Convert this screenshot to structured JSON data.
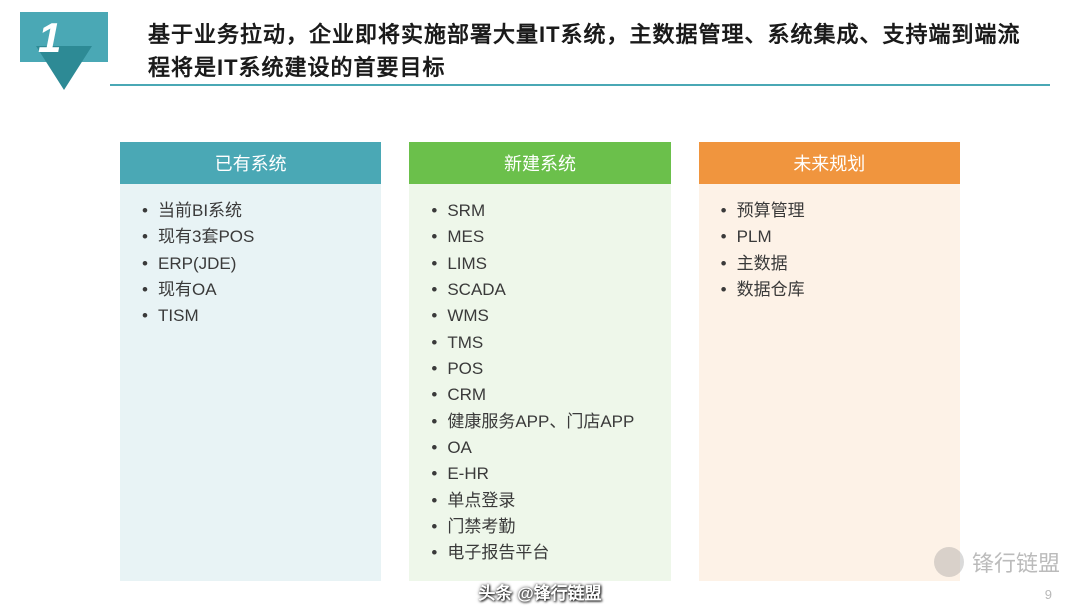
{
  "slide": {
    "number": "1",
    "title": "基于业务拉动，企业即将实施部署大量IT系统，主数据管理、系统集成、支持端到端流程将是IT系统建设的首要目标",
    "title_color": "#1a1a1a",
    "number_bg_color": "#4aa8b5",
    "triangle_color": "#2d8a95",
    "underline_color": "#4aa8b5"
  },
  "columns": [
    {
      "title": "已有系统",
      "header_bg": "#4aa8b5",
      "body_bg": "#e8f3f5",
      "text_color": "#3a3a3a",
      "items": [
        "当前BI系统",
        "现有3套POS",
        "ERP(JDE)",
        "现有OA",
        "TISM"
      ]
    },
    {
      "title": "新建系统",
      "header_bg": "#6bc04b",
      "body_bg": "#eef7ea",
      "text_color": "#3a3a3a",
      "items": [
        "SRM",
        "MES",
        "LIMS",
        "SCADA",
        "WMS",
        "TMS",
        "POS",
        "CRM",
        "健康服务APP、门店APP",
        "OA",
        "E-HR",
        "单点登录",
        "门禁考勤",
        "电子报告平台"
      ]
    },
    {
      "title": "未来规划",
      "header_bg": "#f0953e",
      "body_bg": "#fdf2e7",
      "text_color": "#3a3a3a",
      "items": [
        "预算管理",
        "PLM",
        "主数据",
        "数据仓库"
      ]
    }
  ],
  "watermark": "锋行链盟",
  "footer": "头条 @锋行链盟",
  "page_number": "9",
  "layout": {
    "col_min_height": 400
  }
}
